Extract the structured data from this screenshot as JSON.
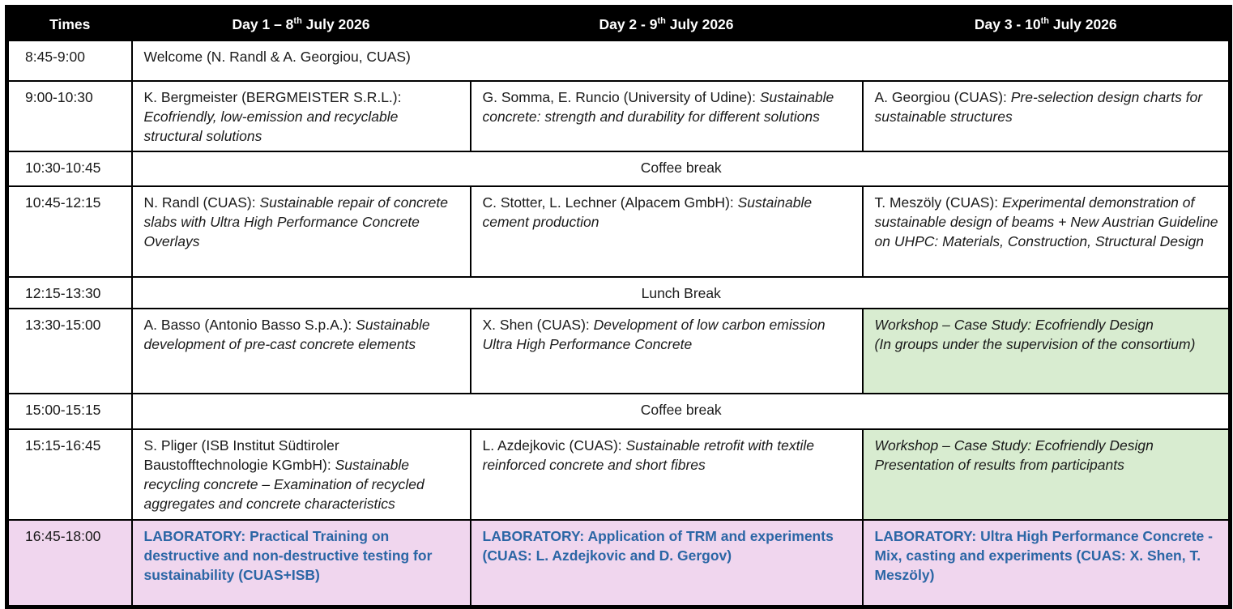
{
  "colors": {
    "header_bg": "#000000",
    "header_text": "#ffffff",
    "workshop_bg": "#d8ecd0",
    "laboratory_bg": "#f0d6ee",
    "laboratory_text": "#2b66a5",
    "border": "#000000"
  },
  "header": {
    "times": "Times",
    "day1": {
      "pre": "Day 1 – 8",
      "sup": "th",
      "post": " July 2026"
    },
    "day2": {
      "pre": "Day 2 - 9",
      "sup": "th",
      "post": " July 2026"
    },
    "day3": {
      "pre": "Day 3 - 10",
      "sup": "th",
      "post": " July 2026"
    }
  },
  "rows": {
    "welcome": {
      "time": "8:45-9:00",
      "text": "Welcome (N. Randl & A. Georgiou, CUAS)"
    },
    "session1": {
      "time": "9:00-10:30",
      "day1": {
        "speaker": "K. Bergmeister (BERGMEISTER S.R.L.): ",
        "title": "Ecofriendly, low-emission and recyclable structural solutions"
      },
      "day2": {
        "speaker": "G. Somma, E. Runcio (University of Udine): ",
        "title": "Sustainable concrete: strength and durability for different solutions"
      },
      "day3": {
        "speaker": "A. Georgiou (CUAS): ",
        "title": "Pre-selection design charts for sustainable structures"
      }
    },
    "coffee1": {
      "time": "10:30-10:45",
      "text": "Coffee break"
    },
    "session2": {
      "time": "10:45-12:15",
      "day1": {
        "speaker": "N. Randl (CUAS): ",
        "title": "Sustainable repair of concrete slabs with Ultra High Performance Concrete Overlays"
      },
      "day2": {
        "speaker": "C. Stotter, L. Lechner (Alpacem GmbH): ",
        "title": "Sustainable cement production"
      },
      "day3": {
        "speaker": "T. Meszöly (CUAS): ",
        "title": "Experimental demonstration of sustainable design of beams + New Austrian Guideline on UHPC:  Materials, Construction, Structural Design"
      }
    },
    "lunch": {
      "time": "12:15-13:30",
      "text": "Lunch Break"
    },
    "session3": {
      "time": "13:30-15:00",
      "day1": {
        "speaker": "A. Basso (Antonio Basso S.p.A.): ",
        "title": "Sustainable development of pre-cast concrete elements"
      },
      "day2": {
        "speaker": "X. Shen (CUAS): ",
        "title": "Development of low carbon emission Ultra High Performance Concrete"
      },
      "day3": {
        "line1": "Workshop – Case Study: Ecofriendly Design",
        "line2": "(In groups under the supervision of the consortium)"
      }
    },
    "coffee2": {
      "time": "15:00-15:15",
      "text": "Coffee break"
    },
    "session4": {
      "time": "15:15-16:45",
      "day1": {
        "speaker": "S. Pliger (ISB Institut Südtiroler Baustofftechnologie KGmbH):  ",
        "title": "Sustainable recycling concrete – Examination of recycled aggregates and concrete characteristics"
      },
      "day2": {
        "speaker": "L. Azdejkovic (CUAS): ",
        "title": "Sustainable retrofit with textile reinforced concrete and short fibres"
      },
      "day3": {
        "line1": "Workshop – Case Study: Ecofriendly Design",
        "line2": "Presentation of results from participants"
      }
    },
    "lab": {
      "time": "16:45-18:00",
      "day1": "LABORATORY: Practical Training on destructive and non-destructive testing for sustainability (CUAS+ISB)",
      "day2": "LABORATORY: Application of TRM and experiments (CUAS: L. Azdejkovic and D. Gergov)",
      "day3": "LABORATORY: Ultra High Performance Concrete - Mix, casting and experiments (CUAS: X. Shen, T. Meszöly)"
    }
  }
}
